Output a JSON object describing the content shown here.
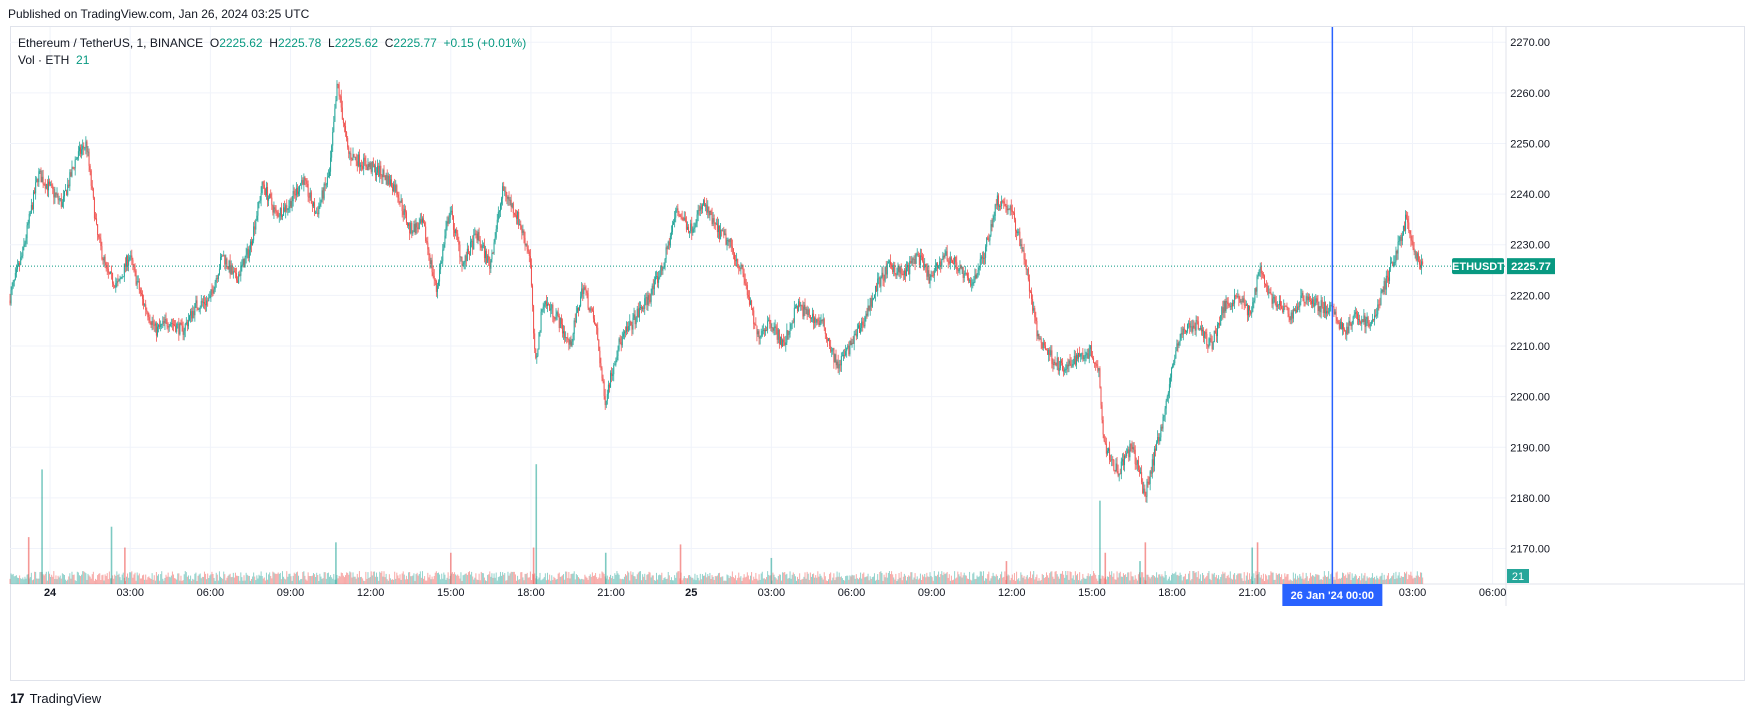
{
  "header": {
    "published": "Published on TradingView.com, Jan 26, 2024 03:25 UTC"
  },
  "legend": {
    "symbol": "Ethereum / TetherUS, 1, BINANCE",
    "o_label": "O",
    "o_value": "2225.62",
    "h_label": "H",
    "h_value": "2225.78",
    "l_label": "L",
    "l_value": "2225.62",
    "c_label": "C",
    "c_value": "2225.77",
    "change": "+0.15 (+0.01%)",
    "vol_label": "Vol · ETH",
    "vol_value": "21"
  },
  "footer": {
    "brand": "TradingView"
  },
  "colors": {
    "up": "#26a69a",
    "down": "#ef5350",
    "crosshair": "#2962ff",
    "price_label": "#089981"
  },
  "chart_data": {
    "type": "candlestick",
    "symbol_badge": "ETHUSDT",
    "last_price": 2225.77,
    "last_price_label": "2225.77",
    "volume_badge": "21",
    "crosshair_label": "26 Jan '24   00:00",
    "ylim": [
      2163,
      2273
    ],
    "y_ticks": [
      2170,
      2180,
      2190,
      2200,
      2210,
      2220,
      2230,
      2240,
      2250,
      2260,
      2270
    ],
    "y_tick_labels": [
      "2170.00",
      "2180.00",
      "2190.00",
      "2200.00",
      "2210.00",
      "2220.00",
      "2230.00",
      "2240.00",
      "2250.00",
      "2260.00",
      "2270.00"
    ],
    "x_tick_labels": [
      "24",
      "03:00",
      "06:00",
      "09:00",
      "12:00",
      "15:00",
      "18:00",
      "21:00",
      "25",
      "03:00",
      "06:00",
      "09:00",
      "12:00",
      "15:00",
      "18:00",
      "21:00",
      "03:00",
      "06:00"
    ],
    "x_tick_hours": [
      0,
      3,
      6,
      9,
      12,
      15,
      18,
      21,
      24,
      27,
      30,
      33,
      36,
      39,
      42,
      45,
      51,
      54
    ],
    "x_range_hours": [
      -1.5,
      54.5
    ],
    "crosshair_hour": 48,
    "last_bar_hour": 51.4,
    "price_path": [
      {
        "t": -1.5,
        "p": 2219
      },
      {
        "t": -1.0,
        "p": 2228
      },
      {
        "t": -0.4,
        "p": 2244
      },
      {
        "t": 0.5,
        "p": 2238
      },
      {
        "t": 1.0,
        "p": 2247
      },
      {
        "t": 1.4,
        "p": 2250
      },
      {
        "t": 1.8,
        "p": 2232
      },
      {
        "t": 2.2,
        "p": 2224
      },
      {
        "t": 2.6,
        "p": 2222
      },
      {
        "t": 3.0,
        "p": 2228
      },
      {
        "t": 3.5,
        "p": 2219
      },
      {
        "t": 4.0,
        "p": 2213
      },
      {
        "t": 4.5,
        "p": 2215
      },
      {
        "t": 5.0,
        "p": 2213
      },
      {
        "t": 5.5,
        "p": 2218
      },
      {
        "t": 6.0,
        "p": 2219
      },
      {
        "t": 6.5,
        "p": 2228
      },
      {
        "t": 7.0,
        "p": 2223
      },
      {
        "t": 7.5,
        "p": 2229
      },
      {
        "t": 8.0,
        "p": 2242
      },
      {
        "t": 8.5,
        "p": 2236
      },
      {
        "t": 9.0,
        "p": 2238
      },
      {
        "t": 9.5,
        "p": 2243
      },
      {
        "t": 10.0,
        "p": 2236
      },
      {
        "t": 10.5,
        "p": 2244
      },
      {
        "t": 10.8,
        "p": 2262
      },
      {
        "t": 11.2,
        "p": 2248
      },
      {
        "t": 11.8,
        "p": 2246
      },
      {
        "t": 12.5,
        "p": 2244
      },
      {
        "t": 13.0,
        "p": 2241
      },
      {
        "t": 13.5,
        "p": 2233
      },
      {
        "t": 14.0,
        "p": 2234
      },
      {
        "t": 14.5,
        "p": 2221
      },
      {
        "t": 15.0,
        "p": 2237
      },
      {
        "t": 15.5,
        "p": 2226
      },
      {
        "t": 16.0,
        "p": 2232
      },
      {
        "t": 16.5,
        "p": 2226
      },
      {
        "t": 17.0,
        "p": 2241
      },
      {
        "t": 17.5,
        "p": 2236
      },
      {
        "t": 18.0,
        "p": 2228
      },
      {
        "t": 18.2,
        "p": 2206
      },
      {
        "t": 18.5,
        "p": 2219
      },
      {
        "t": 19.0,
        "p": 2216
      },
      {
        "t": 19.5,
        "p": 2210
      },
      {
        "t": 20.0,
        "p": 2222
      },
      {
        "t": 20.5,
        "p": 2213
      },
      {
        "t": 20.8,
        "p": 2199
      },
      {
        "t": 21.3,
        "p": 2210
      },
      {
        "t": 22.0,
        "p": 2216
      },
      {
        "t": 22.5,
        "p": 2220
      },
      {
        "t": 23.0,
        "p": 2226
      },
      {
        "t": 23.5,
        "p": 2237
      },
      {
        "t": 24.0,
        "p": 2233
      },
      {
        "t": 24.5,
        "p": 2238
      },
      {
        "t": 25.0,
        "p": 2233
      },
      {
        "t": 25.5,
        "p": 2230
      },
      {
        "t": 26.0,
        "p": 2224
      },
      {
        "t": 26.5,
        "p": 2212
      },
      {
        "t": 27.0,
        "p": 2215
      },
      {
        "t": 27.5,
        "p": 2210
      },
      {
        "t": 28.0,
        "p": 2218
      },
      {
        "t": 28.5,
        "p": 2216
      },
      {
        "t": 29.0,
        "p": 2214
      },
      {
        "t": 29.5,
        "p": 2206
      },
      {
        "t": 30.0,
        "p": 2210
      },
      {
        "t": 30.5,
        "p": 2215
      },
      {
        "t": 31.0,
        "p": 2222
      },
      {
        "t": 31.5,
        "p": 2226
      },
      {
        "t": 32.0,
        "p": 2224
      },
      {
        "t": 32.5,
        "p": 2228
      },
      {
        "t": 33.0,
        "p": 2223
      },
      {
        "t": 33.5,
        "p": 2228
      },
      {
        "t": 34.0,
        "p": 2226
      },
      {
        "t": 34.5,
        "p": 2222
      },
      {
        "t": 35.0,
        "p": 2228
      },
      {
        "t": 35.5,
        "p": 2239
      },
      {
        "t": 36.0,
        "p": 2237
      },
      {
        "t": 36.5,
        "p": 2228
      },
      {
        "t": 37.0,
        "p": 2212
      },
      {
        "t": 37.5,
        "p": 2208
      },
      {
        "t": 38.0,
        "p": 2205
      },
      {
        "t": 38.5,
        "p": 2208
      },
      {
        "t": 39.0,
        "p": 2209
      },
      {
        "t": 39.3,
        "p": 2205
      },
      {
        "t": 39.5,
        "p": 2191
      },
      {
        "t": 40.0,
        "p": 2185
      },
      {
        "t": 40.5,
        "p": 2190
      },
      {
        "t": 40.8,
        "p": 2186
      },
      {
        "t": 41.0,
        "p": 2180
      },
      {
        "t": 41.4,
        "p": 2189
      },
      {
        "t": 41.8,
        "p": 2198
      },
      {
        "t": 42.2,
        "p": 2210
      },
      {
        "t": 42.6,
        "p": 2214
      },
      {
        "t": 43.0,
        "p": 2214
      },
      {
        "t": 43.5,
        "p": 2210
      },
      {
        "t": 44.0,
        "p": 2218
      },
      {
        "t": 44.5,
        "p": 2220
      },
      {
        "t": 45.0,
        "p": 2216
      },
      {
        "t": 45.3,
        "p": 2226
      },
      {
        "t": 45.7,
        "p": 2220
      },
      {
        "t": 46.0,
        "p": 2218
      },
      {
        "t": 46.5,
        "p": 2216
      },
      {
        "t": 47.0,
        "p": 2220
      },
      {
        "t": 47.5,
        "p": 2218
      },
      {
        "t": 48.0,
        "p": 2217
      },
      {
        "t": 48.5,
        "p": 2213
      },
      {
        "t": 49.0,
        "p": 2216
      },
      {
        "t": 49.5,
        "p": 2214
      },
      {
        "t": 50.0,
        "p": 2222
      },
      {
        "t": 50.4,
        "p": 2228
      },
      {
        "t": 50.8,
        "p": 2235
      },
      {
        "t": 51.1,
        "p": 2228
      },
      {
        "t": 51.4,
        "p": 2225.77
      }
    ],
    "volume_spikes": [
      {
        "t": -0.3,
        "v": 110
      },
      {
        "t": -0.8,
        "v": 45
      },
      {
        "t": 2.3,
        "v": 55
      },
      {
        "t": 2.8,
        "v": 35
      },
      {
        "t": 10.7,
        "v": 40
      },
      {
        "t": 15.0,
        "v": 30
      },
      {
        "t": 18.2,
        "v": 115
      },
      {
        "t": 18.1,
        "v": 35
      },
      {
        "t": 20.8,
        "v": 30
      },
      {
        "t": 23.6,
        "v": 38
      },
      {
        "t": 27.0,
        "v": 25
      },
      {
        "t": 35.8,
        "v": 22
      },
      {
        "t": 39.3,
        "v": 80
      },
      {
        "t": 39.5,
        "v": 30
      },
      {
        "t": 40.8,
        "v": 22
      },
      {
        "t": 41.0,
        "v": 40
      },
      {
        "t": 45.0,
        "v": 35
      },
      {
        "t": 45.2,
        "v": 40
      }
    ],
    "volume_max": 120
  }
}
